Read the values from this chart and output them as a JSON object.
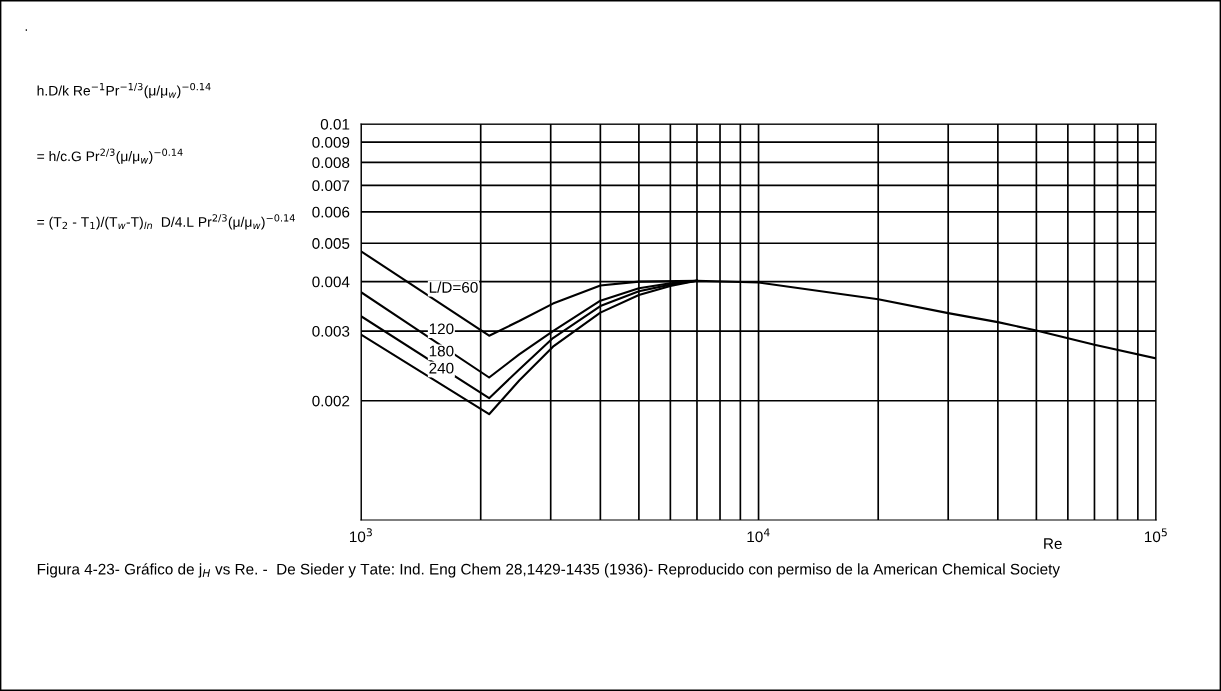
{
  "chart_data": {
    "type": "line",
    "xlabel": "Re",
    "log": "xy",
    "grid": true,
    "marker": "none",
    "line_style": "solid",
    "xlim": [
      1000,
      100000
    ],
    "ylim": [
      0.001,
      0.01
    ],
    "xticks": [
      {
        "value": 1000,
        "label": "10$^{3}$"
      },
      {
        "value": 2000,
        "label": null
      },
      {
        "value": 3000,
        "label": null
      },
      {
        "value": 4000,
        "label": null
      },
      {
        "value": 5000,
        "label": null
      },
      {
        "value": 6000,
        "label": null
      },
      {
        "value": 7000,
        "label": null
      },
      {
        "value": 8000,
        "label": null
      },
      {
        "value": 9000,
        "label": null
      },
      {
        "value": 10000,
        "label": "10$^{4}$"
      },
      {
        "value": 20000,
        "label": null
      },
      {
        "value": 30000,
        "label": null
      },
      {
        "value": 40000,
        "label": null
      },
      {
        "value": 50000,
        "label": null
      },
      {
        "value": 60000,
        "label": null
      },
      {
        "value": 70000,
        "label": null
      },
      {
        "value": 80000,
        "label": null
      },
      {
        "value": 90000,
        "label": null
      },
      {
        "value": 100000,
        "label": "10$^{5}$"
      }
    ],
    "yticks": [
      0.002,
      0.003,
      0.004,
      0.005,
      0.006,
      0.007,
      0.008,
      0.009,
      0.01
    ],
    "series": [
      {
        "name": "L/D=60",
        "color": "#000000",
        "x": [
          1000,
          2100,
          2500,
          3040,
          4000,
          5000,
          7000,
          10000,
          20000,
          30000,
          40000,
          50000,
          70000,
          100000
        ],
        "values": [
          0.00477,
          0.00292,
          0.00318,
          0.00352,
          0.00391,
          0.004,
          0.00402,
          0.00398,
          0.00361,
          0.00333,
          0.00316,
          0.00301,
          0.00277,
          0.00256
        ]
      },
      {
        "name": "120",
        "color": "#000000",
        "x": [
          1000,
          2100,
          2500,
          3040,
          4000,
          5000,
          6000,
          7000
        ],
        "values": [
          0.00376,
          0.00229,
          0.00262,
          0.003,
          0.00358,
          0.00385,
          0.00396,
          0.00402
        ]
      },
      {
        "name": "180",
        "color": "#000000",
        "x": [
          1000,
          2100,
          2500,
          3040,
          4000,
          5000,
          6000,
          7000
        ],
        "values": [
          0.00327,
          0.00203,
          0.0024,
          0.00288,
          0.00347,
          0.00378,
          0.00393,
          0.00402
        ]
      },
      {
        "name": "240",
        "color": "#000000",
        "x": [
          1000,
          2100,
          2500,
          3040,
          4000,
          5000,
          6000,
          7000
        ],
        "values": [
          0.00294,
          0.00185,
          0.00225,
          0.00274,
          0.00334,
          0.0037,
          0.0039,
          0.00402
        ]
      }
    ],
    "annotations": [
      ".",
      "h.D/k Re$^{−1}$Pr$^{−1/3}$(μ/μ$_{w}$)$^{−0.14}$",
      "= h/c.G Pr$^{2/3}$(μ/μ$_{w}$)$^{−0.14}$",
      "= (T$_{2}$ - T$_{1}$)/(T$_{w}$-T)$_{ln}$  D/4.L Pr$^{2/3}$(μ/μ$_{w}$)$^{−0.14}$",
      "Figura 4-23- Gráfico de j$_{H}$ vs Re. -  De Sieder y Tate: Ind. Eng Chem 28,1429-1435 (1936)- Reproducido con permiso de la American Chemical Society"
    ]
  }
}
